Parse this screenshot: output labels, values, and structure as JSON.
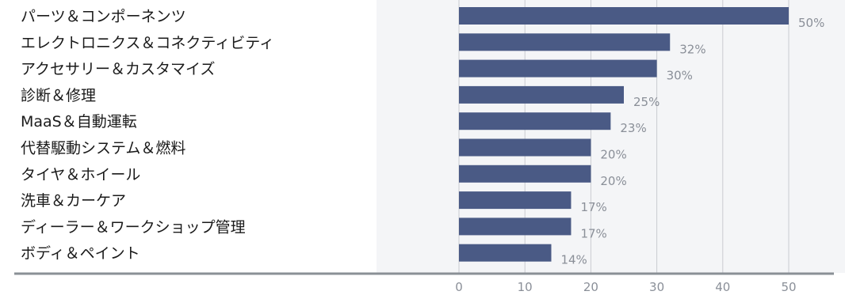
{
  "chart_data": {
    "type": "bar",
    "orientation": "horizontal",
    "categories": [
      "パーツ＆コンポーネンツ",
      "エレクトロニクス＆コネクティビティ",
      "アクセサリー＆カスタマイズ",
      "診断＆修理",
      "MaaS＆自動運転",
      "代替駆動システム＆燃料",
      "タイヤ＆ホイール",
      "洗車＆カーケア",
      "ディーラー＆ワークショップ管理",
      "ボディ＆ペイント"
    ],
    "values": [
      50,
      32,
      30,
      25,
      23,
      20,
      20,
      17,
      17,
      14
    ],
    "value_labels": [
      "50%",
      "32%",
      "30%",
      "25%",
      "23%",
      "20%",
      "20%",
      "17%",
      "17%",
      "14%"
    ],
    "xlim": [
      0,
      50
    ],
    "xticks": [
      0,
      10,
      20,
      30,
      40,
      50
    ],
    "xtick_labels": [
      "0",
      "10",
      "20",
      "30",
      "40",
      "50"
    ],
    "grid": true,
    "colors": {
      "bar": "#4a5a85",
      "grid": "#c9ccd1",
      "axis": "#8a9096",
      "value_text": "#8a8f98"
    }
  }
}
